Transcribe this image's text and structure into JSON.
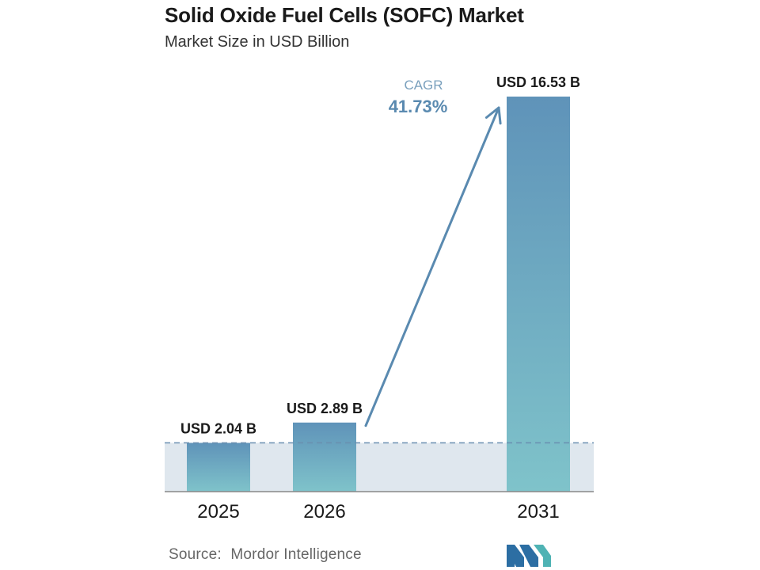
{
  "header": {
    "title": "Solid Oxide Fuel Cells (SOFC) Market",
    "subtitle": "Market Size in USD Billion"
  },
  "chart_data": {
    "type": "bar",
    "title": "Solid Oxide Fuel Cells (SOFC) Market",
    "subtitle": "Market Size in USD Billion",
    "categories": [
      "2025",
      "2026",
      "2031"
    ],
    "values": [
      2.04,
      2.89,
      16.53
    ],
    "data_labels": [
      "USD 2.04 B",
      "USD 2.89 B",
      "USD 16.53 B"
    ],
    "unit": "USD Billion",
    "ylim": [
      0,
      16.53
    ],
    "grid": false,
    "legend": "none",
    "annotation": {
      "label": "CAGR",
      "value": "41.73%"
    },
    "colors": {
      "bar_top": "#5f93b9",
      "bar_bottom": "#7fc3ca",
      "band": "#dfe7ee",
      "arrow": "#5a8ab0",
      "cagr_label": "#7aa0bd",
      "cagr_value": "#5a8ab0",
      "dashed_line": "#6a8fb0",
      "axis": "#888888"
    }
  },
  "footer": {
    "source_label": "Source:",
    "source_name": "Mordor Intelligence",
    "logo_icon": "mordor-intelligence-logo-icon",
    "logo_colors": [
      "#2c6ea3",
      "#4fb3b4"
    ]
  }
}
